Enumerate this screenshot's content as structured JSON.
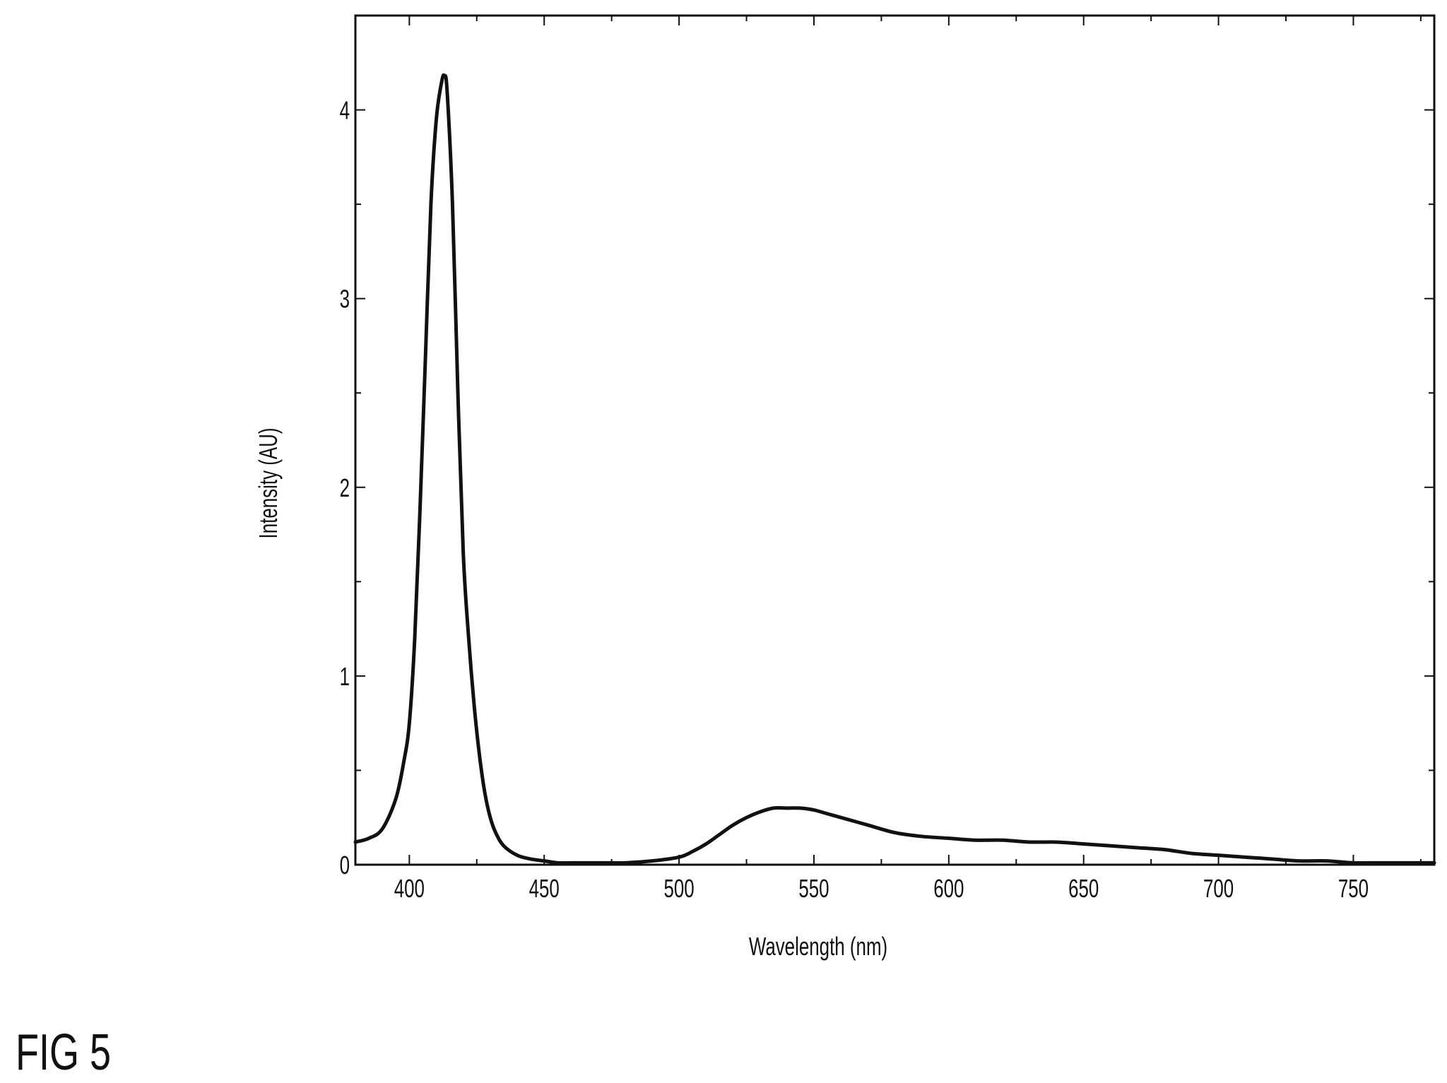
{
  "figure_label": "FIG 5",
  "chart_data": {
    "type": "line",
    "xlabel": "Wavelength (nm)",
    "ylabel": "Intensity (AU)",
    "xlim": [
      380,
      780
    ],
    "ylim": [
      0,
      4.5
    ],
    "x_ticks": [
      400,
      450,
      500,
      550,
      600,
      650,
      700,
      750
    ],
    "x_tick_labels": [
      "400",
      "450",
      "500",
      "550",
      "600",
      "650",
      "700",
      "750"
    ],
    "y_ticks": [
      0,
      1,
      2,
      3,
      4
    ],
    "y_tick_labels": [
      "0",
      "1",
      "2",
      "3",
      "4"
    ],
    "x_minor_ticks": [
      375,
      425,
      475,
      525,
      575,
      625,
      675,
      725,
      775
    ],
    "y_minor_ticks": [
      0.5,
      1.5,
      2.5,
      3.5,
      4.5
    ],
    "grid": false,
    "line_color": "#111111",
    "series": [
      {
        "x": [
          380,
          385,
          390,
          395,
          398,
          400,
          402,
          404,
          406,
          408,
          410,
          412,
          413,
          414,
          416,
          418,
          420,
          422,
          424,
          426,
          428,
          430,
          432,
          435,
          440,
          445,
          450,
          455,
          460,
          470,
          480,
          490,
          500,
          505,
          510,
          515,
          520,
          525,
          530,
          535,
          540,
          545,
          550,
          555,
          560,
          570,
          580,
          590,
          600,
          610,
          620,
          630,
          640,
          650,
          660,
          670,
          680,
          690,
          700,
          710,
          720,
          730,
          740,
          750,
          760,
          770,
          780
        ],
        "y": [
          0.12,
          0.14,
          0.19,
          0.35,
          0.55,
          0.75,
          1.2,
          1.9,
          2.7,
          3.5,
          3.95,
          4.15,
          4.18,
          4.1,
          3.5,
          2.5,
          1.65,
          1.2,
          0.85,
          0.58,
          0.38,
          0.25,
          0.17,
          0.1,
          0.05,
          0.03,
          0.02,
          0.01,
          0.01,
          0.01,
          0.01,
          0.02,
          0.04,
          0.07,
          0.11,
          0.16,
          0.21,
          0.25,
          0.28,
          0.3,
          0.3,
          0.3,
          0.29,
          0.27,
          0.25,
          0.21,
          0.17,
          0.15,
          0.14,
          0.13,
          0.13,
          0.12,
          0.12,
          0.11,
          0.1,
          0.09,
          0.08,
          0.06,
          0.05,
          0.04,
          0.03,
          0.02,
          0.02,
          0.01,
          0.01,
          0.01,
          0.01
        ]
      }
    ]
  }
}
